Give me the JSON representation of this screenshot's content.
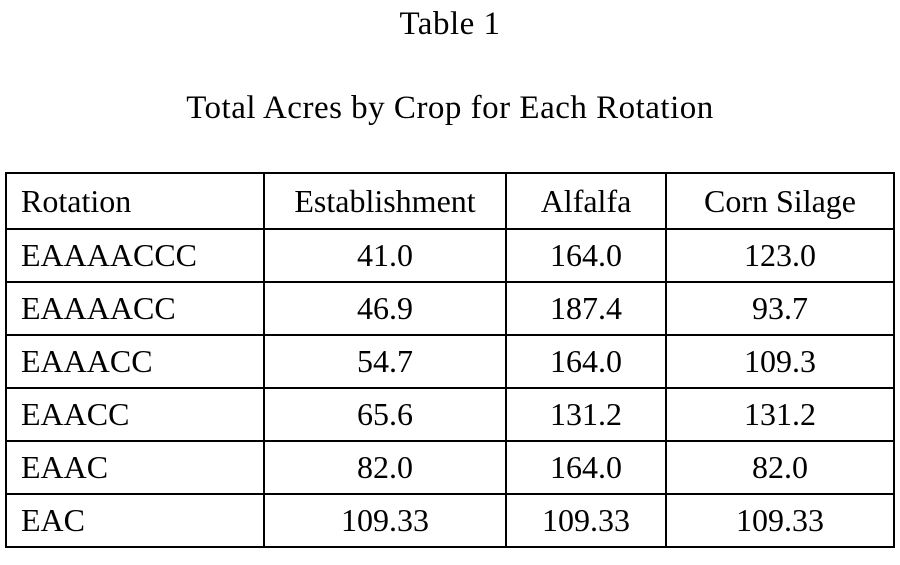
{
  "page": {
    "title": "Table 1",
    "subtitle": "Total Acres by Crop for Each Rotation"
  },
  "table": {
    "columns": [
      "Rotation",
      "Establishment",
      "Alfalfa",
      "Corn Silage"
    ],
    "rows": [
      [
        "EAAAACCC",
        "41.0",
        "164.0",
        "123.0"
      ],
      [
        "EAAAACC",
        "46.9",
        "187.4",
        "93.7"
      ],
      [
        "EAAACC",
        "54.7",
        "164.0",
        "109.3"
      ],
      [
        "EAACC",
        "65.6",
        "131.2",
        "131.2"
      ],
      [
        "EAAC",
        "82.0",
        "164.0",
        "82.0"
      ],
      [
        "EAC",
        "109.33",
        "109.33",
        "109.33"
      ]
    ]
  },
  "chart_data": {
    "type": "table",
    "title": "Table 1",
    "subtitle": "Total Acres by Crop for Each Rotation",
    "columns": [
      "Rotation",
      "Establishment",
      "Alfalfa",
      "Corn Silage"
    ],
    "rows": [
      {
        "rotation": "EAAAACCC",
        "establishment": 41.0,
        "alfalfa": 164.0,
        "corn_silage": 123.0
      },
      {
        "rotation": "EAAAACC",
        "establishment": 46.9,
        "alfalfa": 187.4,
        "corn_silage": 93.7
      },
      {
        "rotation": "EAAACC",
        "establishment": 54.7,
        "alfalfa": 164.0,
        "corn_silage": 109.3
      },
      {
        "rotation": "EAACC",
        "establishment": 65.6,
        "alfalfa": 131.2,
        "corn_silage": 131.2
      },
      {
        "rotation": "EAAC",
        "establishment": 82.0,
        "alfalfa": 164.0,
        "corn_silage": 82.0
      },
      {
        "rotation": "EAC",
        "establishment": 109.33,
        "alfalfa": 109.33,
        "corn_silage": 109.33
      }
    ]
  }
}
